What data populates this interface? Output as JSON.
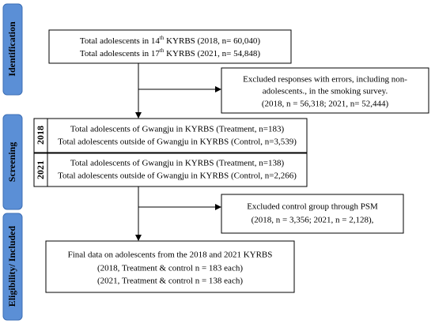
{
  "sections": [
    "Identification",
    "Screening",
    "Eligibility/ Included"
  ],
  "identification_box": {
    "lines": [
      {
        "before": "Total adolescents in 14",
        "sup": "th",
        "after": " KYRBS (2018, n= 60,040)"
      },
      {
        "before": "Total adolescents in 17",
        "sup": "th",
        "after": " KYRBS (2021, n= 54,848)"
      }
    ]
  },
  "exclusion_box": {
    "lines": [
      "Excluded responses with errors, including non-",
      "adolescents., in the smoking survey.",
      "(2018, n = 56,318; 2021, n= 52,444)"
    ]
  },
  "screening": [
    {
      "year": "2018",
      "lines": [
        "Total adolescents of Gwangju in KYRBS (Treatment, n=183)",
        "Total adolescents outside of Gwangju in KYRBS (Control, n=3,539)"
      ]
    },
    {
      "year": "2021",
      "lines": [
        "Total adolescents of Gwangju in KYRBS (Treatment, n=138)",
        "Total adolescents outside of Gwangju in KYRBS (Control, n=2,266)"
      ]
    }
  ],
  "psm_box": {
    "lines": [
      "Excluded control group through PSM",
      "(2018, n = 3,356; 2021, n = 2,128),"
    ]
  },
  "final_box": {
    "lines": [
      "Final data on adolescents from the 2018 and 2021 KYRBS",
      "(2018, Treatment & control n = 183 each)",
      "(2021, Treatment & control n = 138 each)"
    ]
  }
}
